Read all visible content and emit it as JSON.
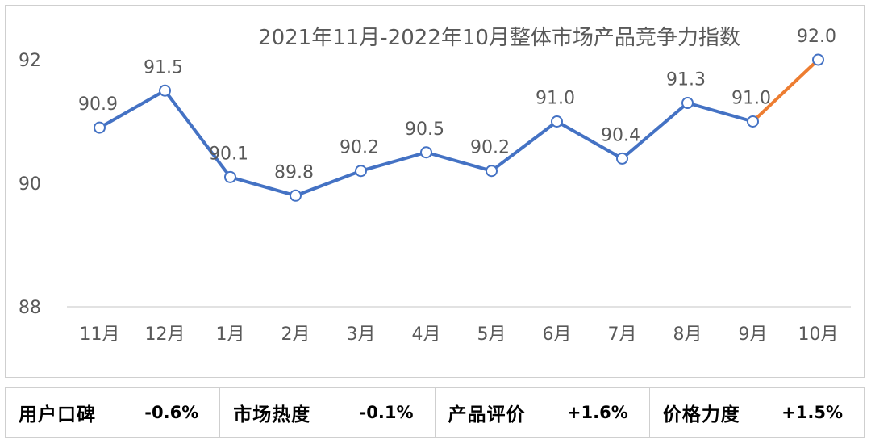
{
  "chart_data": {
    "type": "line",
    "title": "2021年11月-2022年10月整体市场产品竞争力指数",
    "categories": [
      "11月",
      "12月",
      "1月",
      "2月",
      "3月",
      "4月",
      "5月",
      "6月",
      "7月",
      "8月",
      "9月",
      "10月"
    ],
    "series": [
      {
        "values": [
          90.9,
          91.5,
          90.1,
          89.8,
          90.2,
          90.5,
          90.2,
          91.0,
          90.4,
          91.3,
          91.0,
          92.0
        ],
        "value_labels": [
          "90.9",
          "91.5",
          "90.1",
          "89.8",
          "90.2",
          "90.5",
          "90.2",
          "91.0",
          "90.4",
          "91.3",
          "91.0",
          "92.0"
        ]
      }
    ],
    "y_ticks": [
      "88",
      "90",
      "92"
    ],
    "ylim": [
      88,
      92
    ],
    "xlabel": "",
    "ylabel": "",
    "grid": false,
    "colors": {
      "line": "#4472c4",
      "last_segment": "#ed7d31",
      "marker_fill": "#ffffff",
      "drop_line": "#c9d7ee",
      "axis": "#d9d9d9"
    }
  },
  "stats": [
    {
      "label": "用户口碑",
      "value": "-0.6%"
    },
    {
      "label": "市场热度",
      "value": "-0.1%"
    },
    {
      "label": "产品评价",
      "value": "+1.6%"
    },
    {
      "label": "价格力度",
      "value": "+1.5%"
    }
  ]
}
